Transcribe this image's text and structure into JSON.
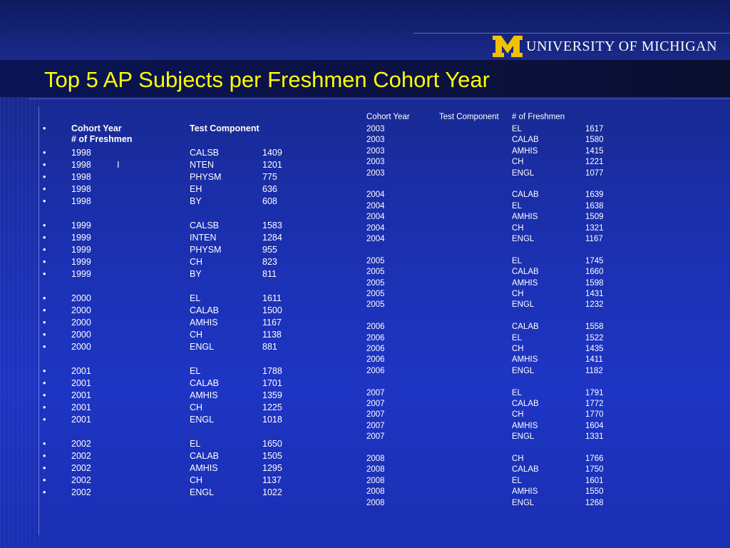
{
  "title": "Top 5 AP Subjects per Freshmen Cohort Year",
  "logo": {
    "mark": "M",
    "text": "UNIVERSITY OF MICHIGAN"
  },
  "left": {
    "header": {
      "bullet": "•",
      "col1": "Cohort Year",
      "col2": "Test Component",
      "col3": "# of Freshmen"
    },
    "groups": [
      {
        "rows": [
          {
            "year": "1998",
            "extra": "",
            "test": "CALSB",
            "count": "1409"
          },
          {
            "year": "1998",
            "extra": "I",
            "test": "NTEN",
            "count": "1201"
          },
          {
            "year": "1998",
            "extra": "",
            "test": "PHYSM",
            "count": "775"
          },
          {
            "year": "1998",
            "extra": "",
            "test": "EH",
            "count": "636"
          },
          {
            "year": "1998",
            "extra": "",
            "test": "BY",
            "count": "608"
          }
        ]
      },
      {
        "rows": [
          {
            "year": "1999",
            "extra": "",
            "test": "CALSB",
            "count": "1583"
          },
          {
            "year": "1999",
            "extra": "",
            "test": "INTEN",
            "count": "1284"
          },
          {
            "year": "1999",
            "extra": "",
            "test": "PHYSM",
            "count": "955"
          },
          {
            "year": "1999",
            "extra": "",
            "test": "CH",
            "count": "823"
          },
          {
            "year": "1999",
            "extra": "",
            "test": "BY",
            "count": "811"
          }
        ]
      },
      {
        "rows": [
          {
            "year": "2000",
            "extra": "",
            "test": "EL",
            "count": "1611"
          },
          {
            "year": "2000",
            "extra": "",
            "test": "CALAB",
            "count": "1500"
          },
          {
            "year": "2000",
            "extra": "",
            "test": "AMHIS",
            "count": "1167"
          },
          {
            "year": "2000",
            "extra": "",
            "test": "CH",
            "count": "1138"
          },
          {
            "year": "2000",
            "extra": "",
            "test": "ENGL",
            "count": "881"
          }
        ]
      },
      {
        "rows": [
          {
            "year": "2001",
            "extra": "",
            "test": "EL",
            "count": "1788"
          },
          {
            "year": "2001",
            "extra": "",
            "test": "CALAB",
            "count": "1701"
          },
          {
            "year": "2001",
            "extra": "",
            "test": "AMHIS",
            "count": "1359"
          },
          {
            "year": "2001",
            "extra": "",
            "test": "CH",
            "count": "1225"
          },
          {
            "year": "2001",
            "extra": "",
            "test": "ENGL",
            "count": "1018"
          }
        ]
      },
      {
        "rows": [
          {
            "year": "2002",
            "extra": "",
            "test": "EL",
            "count": "1650"
          },
          {
            "year": "2002",
            "extra": "",
            "test": "CALAB",
            "count": "1505"
          },
          {
            "year": "2002",
            "extra": "",
            "test": "AMHIS",
            "count": "1295"
          },
          {
            "year": "2002",
            "extra": "",
            "test": "CH",
            "count": "1137"
          },
          {
            "year": "2002",
            "extra": "",
            "test": "ENGL",
            "count": "1022"
          }
        ]
      }
    ]
  },
  "right": {
    "header": {
      "col1": "Cohort Year",
      "col2": "Test Component",
      "col3": "# of Freshmen"
    },
    "groups": [
      {
        "rows": [
          {
            "year": "2003",
            "test": "EL",
            "count": "1617"
          },
          {
            "year": "2003",
            "test": "CALAB",
            "count": "1580"
          },
          {
            "year": "2003",
            "test": "AMHIS",
            "count": "1415"
          },
          {
            "year": "2003",
            "test": "CH",
            "count": "1221"
          },
          {
            "year": "2003",
            "test": "ENGL",
            "count": "1077"
          }
        ]
      },
      {
        "rows": [
          {
            "year": "2004",
            "test": "CALAB",
            "count": "1639"
          },
          {
            "year": "2004",
            "test": "EL",
            "count": "1638"
          },
          {
            "year": "2004",
            "test": "AMHIS",
            "count": "1509"
          },
          {
            "year": "2004",
            "test": "CH",
            "count": "1321"
          },
          {
            "year": "2004",
            "test": "ENGL",
            "count": "1167"
          }
        ]
      },
      {
        "rows": [
          {
            "year": "2005",
            "test": "EL",
            "count": "1745"
          },
          {
            "year": "2005",
            "test": "CALAB",
            "count": "1660"
          },
          {
            "year": "2005",
            "test": "AMHIS",
            "count": "1598"
          },
          {
            "year": "2005",
            "test": "CH",
            "count": "1431"
          },
          {
            "year": "2005",
            "test": "ENGL",
            "count": "1232"
          }
        ]
      },
      {
        "rows": [
          {
            "year": "2006",
            "test": "CALAB",
            "count": "1558"
          },
          {
            "year": "2006",
            "test": "EL",
            "count": "1522"
          },
          {
            "year": "2006",
            "test": "CH",
            "count": "1435"
          },
          {
            "year": "2006",
            "test": "AMHIS",
            "count": "1411"
          },
          {
            "year": "2006",
            "test": "ENGL",
            "count": "1182"
          }
        ]
      },
      {
        "rows": [
          {
            "year": "2007",
            "test": "EL",
            "count": "1791"
          },
          {
            "year": "2007",
            "test": "CALAB",
            "count": "1772"
          },
          {
            "year": "2007",
            "test": "CH",
            "count": "1770"
          },
          {
            "year": "2007",
            "test": "AMHIS",
            "count": "1604"
          },
          {
            "year": "2007",
            "test": "ENGL",
            "count": "1331"
          }
        ]
      },
      {
        "rows": [
          {
            "year": "2008",
            "test": "CH",
            "count": "1766"
          },
          {
            "year": "2008",
            "test": "CALAB",
            "count": "1750"
          },
          {
            "year": "2008",
            "test": "EL",
            "count": "1601"
          },
          {
            "year": "2008",
            "test": "AMHIS",
            "count": "1550"
          },
          {
            "year": "2008",
            "test": "ENGL",
            "count": "1268"
          }
        ]
      }
    ]
  },
  "colors": {
    "title": "#ffff00",
    "logo_mark": "#f2c200",
    "background": "#1e35c4",
    "text": "#ffffff"
  }
}
